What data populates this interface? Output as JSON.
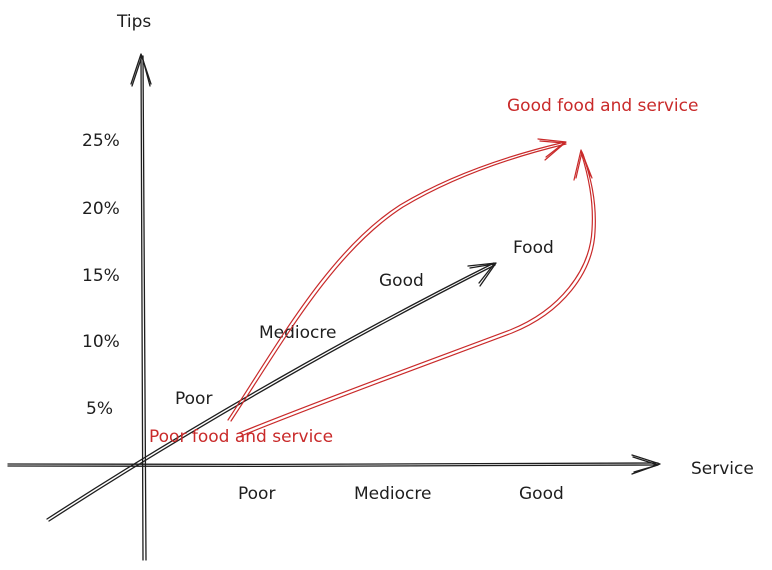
{
  "axes": {
    "y_label": "Tips",
    "x_label": "Service",
    "y_ticks": [
      "25%",
      "20%",
      "15%",
      "10%",
      "5%"
    ],
    "x_ticks": [
      "Poor",
      "Mediocre",
      "Good"
    ]
  },
  "food_axis": {
    "label": "Food",
    "ticks": [
      "Poor",
      "Mediocre",
      "Good"
    ]
  },
  "annotations": {
    "good": "Good food and service",
    "poor": "Poor food and service"
  },
  "colors": {
    "ink": "#1e1e1e",
    "accent": "#c92a2a"
  }
}
